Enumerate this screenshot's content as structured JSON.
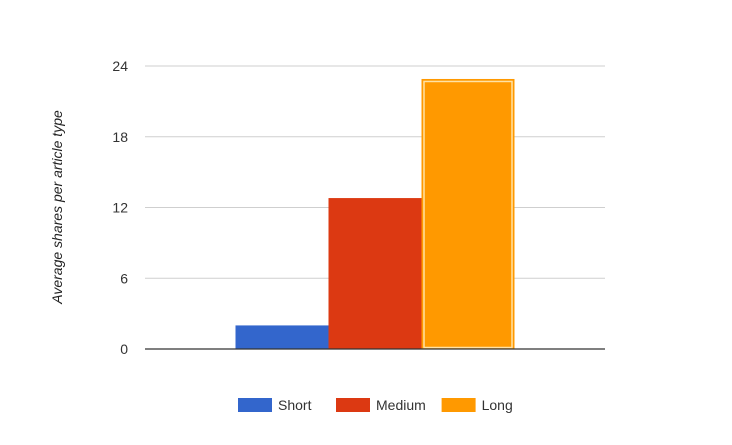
{
  "chart_data": {
    "type": "bar",
    "title": "",
    "xlabel": "",
    "ylabel": "Average shares per article type",
    "ylim": [
      0,
      24
    ],
    "yticks": [
      0,
      6,
      12,
      18,
      24
    ],
    "grid": true,
    "legend_position": "bottom",
    "categories": [
      ""
    ],
    "series": [
      {
        "name": "Short",
        "values": [
          2
        ],
        "color": "#3366cc"
      },
      {
        "name": "Medium",
        "values": [
          12.8
        ],
        "color": "#dc3912"
      },
      {
        "name": "Long",
        "values": [
          22.9
        ],
        "color": "#ff9900"
      }
    ]
  }
}
